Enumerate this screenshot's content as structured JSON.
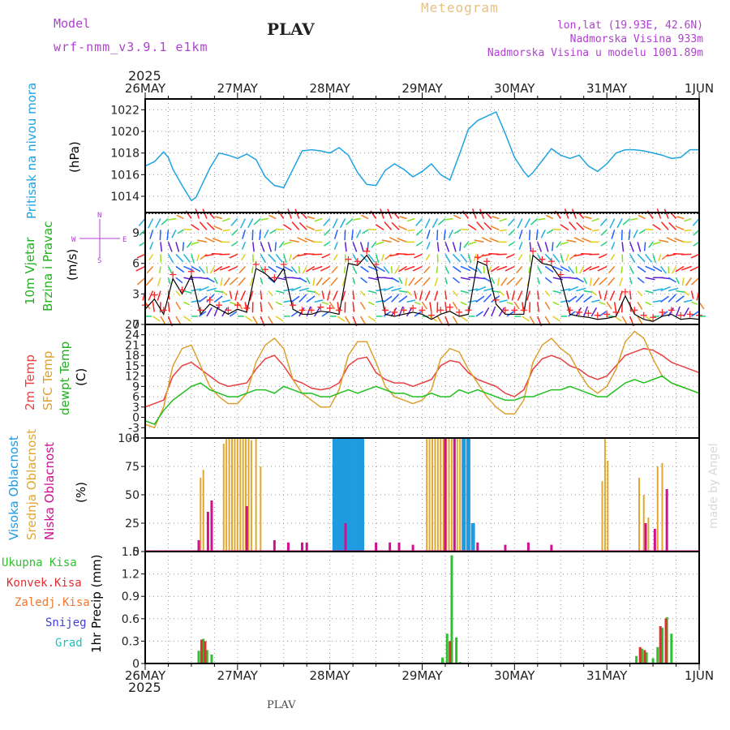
{
  "header": {
    "model_label": "Model",
    "model_name": "wrf-nmm_v3.9.1 e1km",
    "station": "PLAV",
    "title": "Meteogram",
    "lonlat": "lon,lat (19.93E, 42.6N)",
    "elevation": "Nadmorska Visina 933m",
    "model_elevation": "Nadmorska Visina u modelu 1001.89m",
    "year_top": "2025",
    "year_bottom": "2025",
    "footer": "PLAV",
    "watermark": "made by Angel"
  },
  "colors": {
    "pressure": "#1fa3e0",
    "wind_speed_black": "#000000",
    "wind_speed_red": "#ff2a2a",
    "temp2m": "#e84040",
    "sfc": "#dca030",
    "dewpt": "#20c020",
    "high_cloud": "#1f9be0",
    "mid_cloud": "#e0a830",
    "low_cloud": "#d01090",
    "total_precip": "#30c030",
    "conv_precip": "#e03030",
    "frozen_precip": "#f07830",
    "snow": "#4040d0",
    "hail": "#20c0c0",
    "label_purple": "#b040d0"
  },
  "chart_data": {
    "x_ticks": [
      "26MAY",
      "27MAY",
      "28MAY",
      "29MAY",
      "30MAY",
      "31MAY",
      "1JUN"
    ],
    "panels": [
      {
        "type": "line",
        "name": "pressure",
        "ylabels": [
          "Pritisak na nivou mora",
          "(hPa)"
        ],
        "ylim": [
          1012.5,
          1023
        ],
        "yticks": [
          1014,
          1016,
          1018,
          1020,
          1022
        ],
        "series": [
          {
            "name": "Pritisak na nivou mora",
            "x": [
              0,
              0.1,
              0.2,
              0.25,
              0.3,
              0.4,
              0.5,
              0.55,
              0.6,
              0.7,
              0.8,
              0.9,
              1.0,
              1.1,
              1.2,
              1.3,
              1.4,
              1.5,
              1.6,
              1.7,
              1.8,
              1.9,
              2.0,
              2.1,
              2.2,
              2.25,
              2.3,
              2.4,
              2.5,
              2.6,
              2.7,
              2.8,
              2.9,
              3.0,
              3.1,
              3.2,
              3.3,
              3.4,
              3.5,
              3.6,
              3.7,
              3.8,
              3.9,
              4.0,
              4.1,
              4.15,
              4.2,
              4.3,
              4.4,
              4.5,
              4.6,
              4.7,
              4.8,
              4.9,
              5.0,
              5.1,
              5.2,
              5.3,
              5.4,
              5.5,
              5.6,
              5.7,
              5.8,
              5.9,
              6.0
            ],
            "values": [
              1016.8,
              1017.2,
              1018.1,
              1017.6,
              1016.5,
              1015.0,
              1013.6,
              1013.9,
              1014.8,
              1016.6,
              1018.0,
              1017.8,
              1017.5,
              1017.9,
              1017.4,
              1015.8,
              1015.0,
              1014.8,
              1016.5,
              1018.2,
              1018.3,
              1018.2,
              1018.0,
              1018.5,
              1017.8,
              1017.0,
              1016.2,
              1015.1,
              1015.0,
              1016.4,
              1017.0,
              1016.5,
              1015.8,
              1016.3,
              1017.0,
              1016.0,
              1015.5,
              1017.8,
              1020.2,
              1021.0,
              1021.4,
              1021.8,
              1019.8,
              1017.6,
              1016.3,
              1015.8,
              1016.2,
              1017.3,
              1018.4,
              1017.8,
              1017.5,
              1017.8,
              1016.8,
              1016.3,
              1017.0,
              1018.0,
              1018.3,
              1018.3,
              1018.2,
              1018.0,
              1017.8,
              1017.5,
              1017.6,
              1018.3,
              1018.3
            ]
          }
        ]
      },
      {
        "type": "wind",
        "name": "wind",
        "ylabels": [
          "10m Vjetar",
          "Brzina i Pravac",
          "(m/s)"
        ],
        "ylim": [
          0,
          11
        ],
        "yticks": [
          0,
          3,
          6,
          9
        ],
        "compass": [
          "N",
          "S",
          "W",
          "E"
        ],
        "series": [
          {
            "name": "Brzina",
            "x": [
              0,
              0.1,
              0.2,
              0.3,
              0.4,
              0.5,
              0.6,
              0.7,
              0.8,
              0.9,
              1.0,
              1.1,
              1.2,
              1.3,
              1.4,
              1.5,
              1.6,
              1.7,
              1.8,
              1.9,
              2.0,
              2.1,
              2.2,
              2.3,
              2.4,
              2.5,
              2.6,
              2.7,
              2.8,
              2.9,
              3.0,
              3.1,
              3.2,
              3.3,
              3.4,
              3.5,
              3.6,
              3.7,
              3.8,
              3.9,
              4.0,
              4.1,
              4.2,
              4.3,
              4.4,
              4.5,
              4.6,
              4.7,
              4.8,
              4.9,
              5.0,
              5.1,
              5.2,
              5.3,
              5.4,
              5.5,
              5.6,
              5.7,
              5.8,
              5.9,
              6.0
            ],
            "values": [
              1.5,
              2.5,
              1.0,
              4.5,
              3.0,
              4.8,
              1.0,
              2.0,
              1.5,
              1.0,
              1.5,
              1.2,
              5.5,
              5.0,
              4.2,
              5.5,
              1.5,
              1.0,
              1.0,
              1.3,
              1.2,
              1.0,
              6.0,
              5.8,
              6.8,
              5.5,
              1.0,
              0.8,
              1.0,
              1.2,
              1.0,
              0.5,
              1.0,
              1.3,
              0.8,
              1.0,
              6.2,
              5.8,
              2.0,
              1.0,
              1.0,
              1.0,
              6.8,
              6.0,
              5.8,
              4.5,
              1.0,
              0.8,
              0.7,
              0.5,
              0.6,
              0.8,
              2.8,
              1.0,
              0.5,
              0.3,
              0.8,
              1.0,
              0.5,
              0.6,
              0.5
            ]
          }
        ]
      },
      {
        "type": "line",
        "name": "temperature",
        "ylabels": [
          "2m Temp",
          "SFC Temp",
          "dewpt Temp",
          "(C)"
        ],
        "ylim": [
          -6,
          27
        ],
        "yticks": [
          -6,
          -3,
          0,
          3,
          6,
          9,
          12,
          15,
          18,
          21,
          24,
          27
        ],
        "series": [
          {
            "name": "2m Temp",
            "x": [
              0,
              0.1,
              0.2,
              0.3,
              0.4,
              0.5,
              0.6,
              0.7,
              0.8,
              0.9,
              1.0,
              1.1,
              1.2,
              1.3,
              1.4,
              1.5,
              1.6,
              1.7,
              1.8,
              1.9,
              2.0,
              2.1,
              2.2,
              2.3,
              2.4,
              2.5,
              2.6,
              2.7,
              2.8,
              2.9,
              3.0,
              3.1,
              3.2,
              3.3,
              3.4,
              3.5,
              3.6,
              3.7,
              3.8,
              3.9,
              4.0,
              4.1,
              4.2,
              4.3,
              4.4,
              4.5,
              4.6,
              4.7,
              4.8,
              4.9,
              5.0,
              5.1,
              5.2,
              5.3,
              5.4,
              5.5,
              5.6,
              5.7,
              5.8,
              5.9,
              6.0
            ],
            "values": [
              3,
              4,
              5,
              12,
              15,
              16,
              14,
              12,
              10,
              9,
              9.5,
              10,
              14,
              17,
              18,
              15,
              11,
              10,
              8.5,
              8,
              8.5,
              10,
              15,
              17,
              17.5,
              13,
              11,
              10,
              10,
              9,
              10,
              11,
              15,
              16.5,
              16,
              13,
              11,
              10,
              9,
              7,
              6,
              8,
              14,
              17,
              18,
              17,
              15,
              14,
              12,
              11,
              12,
              15,
              18,
              19,
              20,
              19.5,
              18,
              16,
              15,
              14,
              13
            ]
          },
          {
            "name": "SFC Temp",
            "x": [
              0,
              0.1,
              0.2,
              0.3,
              0.4,
              0.5,
              0.6,
              0.7,
              0.8,
              0.9,
              1.0,
              1.1,
              1.2,
              1.3,
              1.4,
              1.5,
              1.6,
              1.7,
              1.8,
              1.9,
              2.0,
              2.1,
              2.2,
              2.3,
              2.4,
              2.5,
              2.6,
              2.7,
              2.8,
              2.9,
              3.0,
              3.1,
              3.2,
              3.3,
              3.4,
              3.5,
              3.6,
              3.7,
              3.8,
              3.9,
              4.0,
              4.1,
              4.2,
              4.3,
              4.4,
              4.5,
              4.6,
              4.7,
              4.8,
              4.9,
              5.0,
              5.1,
              5.2,
              5.3,
              5.4,
              5.5,
              5.6,
              5.7,
              5.8,
              5.9,
              6.0
            ],
            "values": [
              -2,
              -3,
              3,
              15,
              20,
              21,
              15,
              9,
              6,
              4,
              4,
              7,
              16,
              21,
              23,
              20,
              11,
              7,
              5,
              3,
              3,
              8,
              18,
              22,
              22,
              16,
              9,
              6,
              5,
              4,
              5,
              8,
              17,
              20,
              19,
              14,
              10,
              6,
              3,
              1,
              1,
              5,
              16,
              21,
              23,
              20,
              18,
              13,
              9,
              7,
              9,
              14,
              22,
              25,
              23,
              17,
              12,
              10,
              9,
              8,
              7
            ]
          },
          {
            "name": "dewpt Temp",
            "x": [
              0,
              0.1,
              0.2,
              0.3,
              0.4,
              0.5,
              0.6,
              0.7,
              0.8,
              0.9,
              1.0,
              1.1,
              1.2,
              1.3,
              1.4,
              1.5,
              1.6,
              1.7,
              1.8,
              1.9,
              2.0,
              2.1,
              2.2,
              2.3,
              2.4,
              2.5,
              2.6,
              2.7,
              2.8,
              2.9,
              3.0,
              3.1,
              3.2,
              3.3,
              3.4,
              3.5,
              3.6,
              3.7,
              3.8,
              3.9,
              4.0,
              4.1,
              4.2,
              4.3,
              4.4,
              4.5,
              4.6,
              4.7,
              4.8,
              4.9,
              5.0,
              5.1,
              5.2,
              5.3,
              5.4,
              5.5,
              5.6,
              5.7,
              5.8,
              5.9,
              6.0
            ],
            "values": [
              -1,
              -2,
              2,
              5,
              7,
              9,
              10,
              8,
              7,
              6,
              6,
              7,
              8,
              8,
              7,
              9,
              8,
              7,
              7,
              6,
              6,
              7,
              8,
              7,
              8,
              9,
              8,
              7,
              7,
              6,
              6,
              7,
              6,
              6,
              8,
              7,
              8,
              7,
              6,
              5,
              5,
              6,
              6,
              7,
              8,
              8,
              9,
              8,
              7,
              6,
              6,
              8,
              10,
              11,
              10,
              11,
              12,
              10,
              9,
              8,
              7
            ]
          }
        ]
      },
      {
        "type": "bar",
        "name": "clouds",
        "ylabels": [
          "Visoka Oblacnost",
          "Srednja Oblacnost",
          "Niska Oblacnost",
          "(%)"
        ],
        "ylim": [
          0,
          100
        ],
        "yticks": [
          0,
          25,
          50,
          75,
          100
        ],
        "series": [
          {
            "name": "Visoka Oblacnost",
            "x": [
              2.05,
              2.08,
              2.11,
              2.14,
              2.17,
              2.2,
              2.23,
              2.26,
              2.29,
              2.32,
              2.35,
              3.45,
              3.5,
              3.55
            ],
            "values": [
              100,
              100,
              100,
              100,
              100,
              100,
              100,
              100,
              100,
              100,
              100,
              100,
              100,
              25
            ]
          },
          {
            "name": "Srednja Oblacnost",
            "x": [
              0.6,
              0.63,
              0.85,
              0.88,
              0.91,
              0.94,
              0.97,
              1.0,
              1.03,
              1.06,
              1.09,
              1.12,
              1.15,
              1.2,
              1.25,
              3.05,
              3.08,
              3.11,
              3.14,
              3.17,
              3.2,
              3.23,
              3.26,
              3.29,
              3.32,
              3.35,
              3.38,
              3.41,
              4.95,
              4.98,
              5.01,
              5.35,
              5.4,
              5.45,
              5.55,
              5.6,
              5.65
            ],
            "values": [
              65,
              72,
              95,
              100,
              100,
              100,
              100,
              100,
              100,
              100,
              100,
              100,
              98,
              100,
              75,
              100,
              100,
              100,
              100,
              100,
              100,
              100,
              100,
              100,
              100,
              100,
              100,
              100,
              62,
              100,
              80,
              65,
              50,
              30,
              75,
              78,
              40
            ]
          },
          {
            "name": "Niska Oblacnost",
            "x": [
              0.58,
              0.68,
              0.72,
              1.1,
              1.4,
              1.55,
              1.7,
              1.75,
              2.17,
              2.5,
              2.65,
              2.75,
              2.9,
              3.25,
              3.35,
              3.6,
              3.9,
              4.15,
              4.4,
              5.42,
              5.52,
              5.65
            ],
            "values": [
              10,
              35,
              45,
              40,
              10,
              8,
              8,
              8,
              25,
              8,
              8,
              8,
              6,
              100,
              100,
              8,
              6,
              8,
              6,
              25,
              20,
              55
            ]
          }
        ]
      },
      {
        "type": "bar",
        "name": "precipitation",
        "ylabels": [
          "1hr Precip (mm)"
        ],
        "legend": [
          "Ukupna Kisa",
          "Konvek.Kisa",
          "Zaledj.Kisa",
          "Snijeg",
          "Grad"
        ],
        "ylim": [
          0,
          1.5
        ],
        "yticks": [
          0,
          0.3,
          0.6,
          0.9,
          1.2,
          1.5
        ],
        "series": [
          {
            "name": "Ukupna Kisa",
            "x": [
              0.58,
              0.63,
              0.67,
              0.72,
              3.22,
              3.27,
              3.32,
              3.37,
              3.41,
              5.32,
              5.38,
              5.43,
              5.5,
              5.55,
              5.6,
              5.65,
              5.7
            ],
            "values": [
              0.17,
              0.33,
              0.18,
              0.12,
              0.08,
              0.4,
              1.45,
              0.35,
              0.02,
              0.1,
              0.2,
              0.15,
              0.07,
              0.22,
              0.48,
              0.62,
              0.4
            ]
          },
          {
            "name": "Konvek.Kisa",
            "x": [
              0.61,
              0.65,
              3.3,
              5.36,
              5.41,
              5.58,
              5.64
            ],
            "values": [
              0.32,
              0.3,
              0.3,
              0.22,
              0.18,
              0.5,
              0.6
            ]
          }
        ]
      }
    ]
  }
}
